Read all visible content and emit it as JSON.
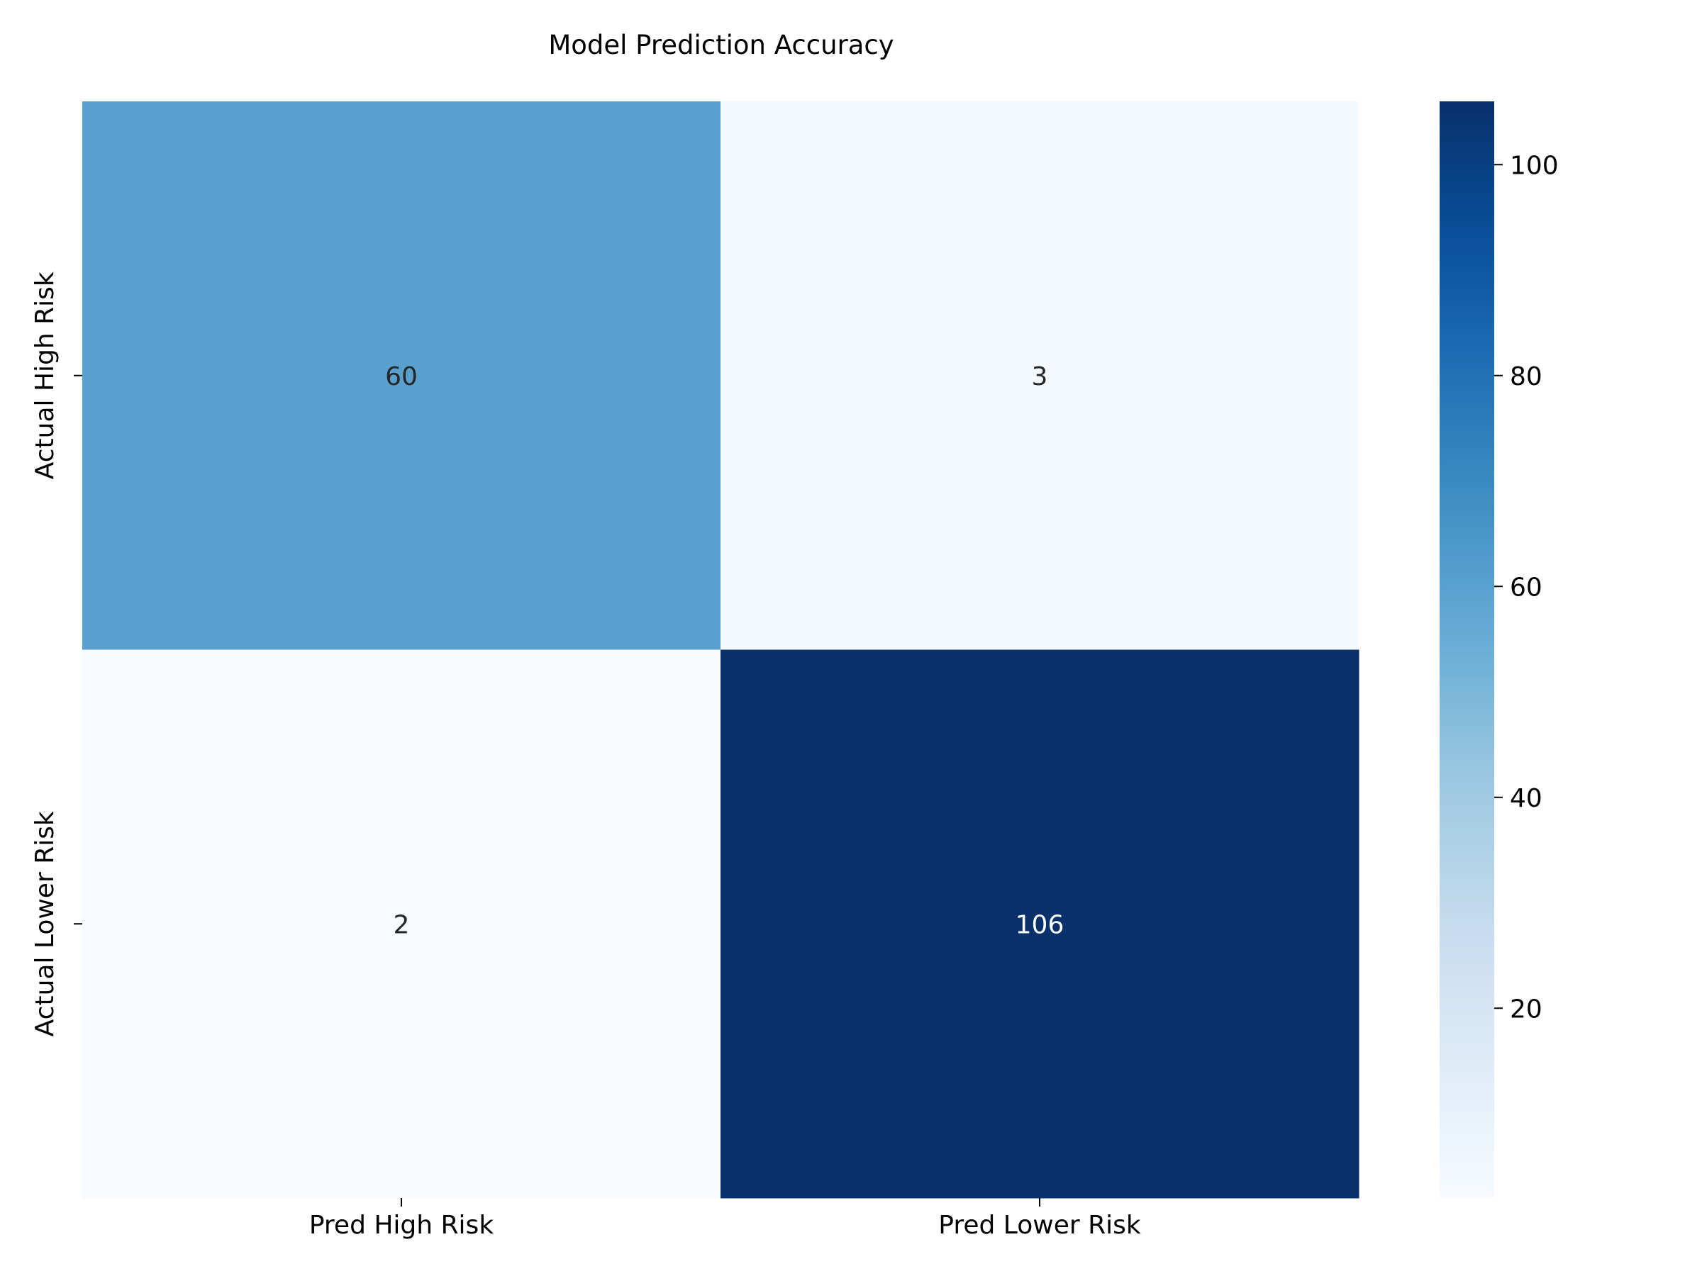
{
  "chart_data": {
    "type": "heatmap",
    "title": "Model Prediction Accuracy",
    "xlabel": "",
    "ylabel": "",
    "x_categories": [
      "Pred High Risk",
      "Pred Lower Risk"
    ],
    "y_categories": [
      "Actual High Risk",
      "Actual Lower Risk"
    ],
    "values": [
      [
        60,
        3
      ],
      [
        2,
        106
      ]
    ],
    "colormap": "Blues",
    "colorbar": {
      "range": [
        2,
        106
      ],
      "ticks": [
        20,
        40,
        60,
        80,
        100
      ],
      "tick_labels": [
        "20",
        "40",
        "60",
        "80",
        "100"
      ]
    },
    "annotation_colors": {
      "light": "#ffffff",
      "dark": "#262626"
    }
  }
}
